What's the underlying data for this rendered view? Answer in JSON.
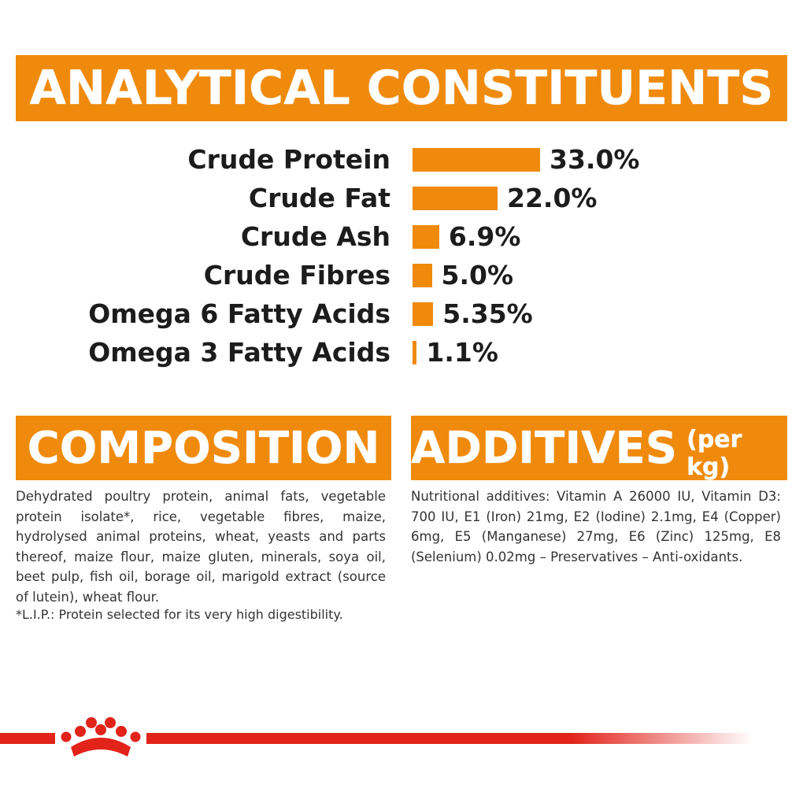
{
  "analytical": {
    "title": "ANALYTICAL CONSTITUENTS",
    "rows": [
      {
        "label": "Crude Protein",
        "value": "33.0%",
        "amount": 33.0
      },
      {
        "label": "Crude Fat",
        "value": "22.0%",
        "amount": 22.0
      },
      {
        "label": "Crude Ash",
        "value": "6.9%",
        "amount": 6.9
      },
      {
        "label": "Crude Fibres",
        "value": "5.0%",
        "amount": 5.0
      },
      {
        "label": "Omega 6 Fatty Acids",
        "value": "5.35%",
        "amount": 5.35
      },
      {
        "label": "Omega 3 Fatty Acids",
        "value": "1.1%",
        "amount": 1.1
      }
    ]
  },
  "composition": {
    "title": "COMPOSITION",
    "text": "Dehydrated poultry protein, animal fats, vegetable protein isolate*, rice, vegetable fibres, maize, hydrolysed animal proteins, wheat, yeasts and parts thereof, maize flour, maize gluten, minerals, soya oil, beet pulp, fish oil, borage oil, marigold extract (source of lutein), wheat flour.",
    "note": "*L.I.P.: Protein selected for its very high digestibility."
  },
  "additives": {
    "title": "ADDITIVES",
    "subtitle": "(per kg)",
    "text": "Nutritional additives: Vitamin A 26000 IU, Vitamin D3: 700 IU, E1 (Iron) 21mg, E2 (Iodine) 2.1mg, E4 (Copper) 6mg, E5 (Manganese) 27mg, E6 (Zinc) 125mg, E8 (Selenium) 0.02mg – Preservatives – Anti-oxidants."
  },
  "colors": {
    "accent": "#ef8a0c",
    "brand_red": "#e2231a"
  },
  "logo": {
    "icon": "royal-canin-crown-icon"
  }
}
